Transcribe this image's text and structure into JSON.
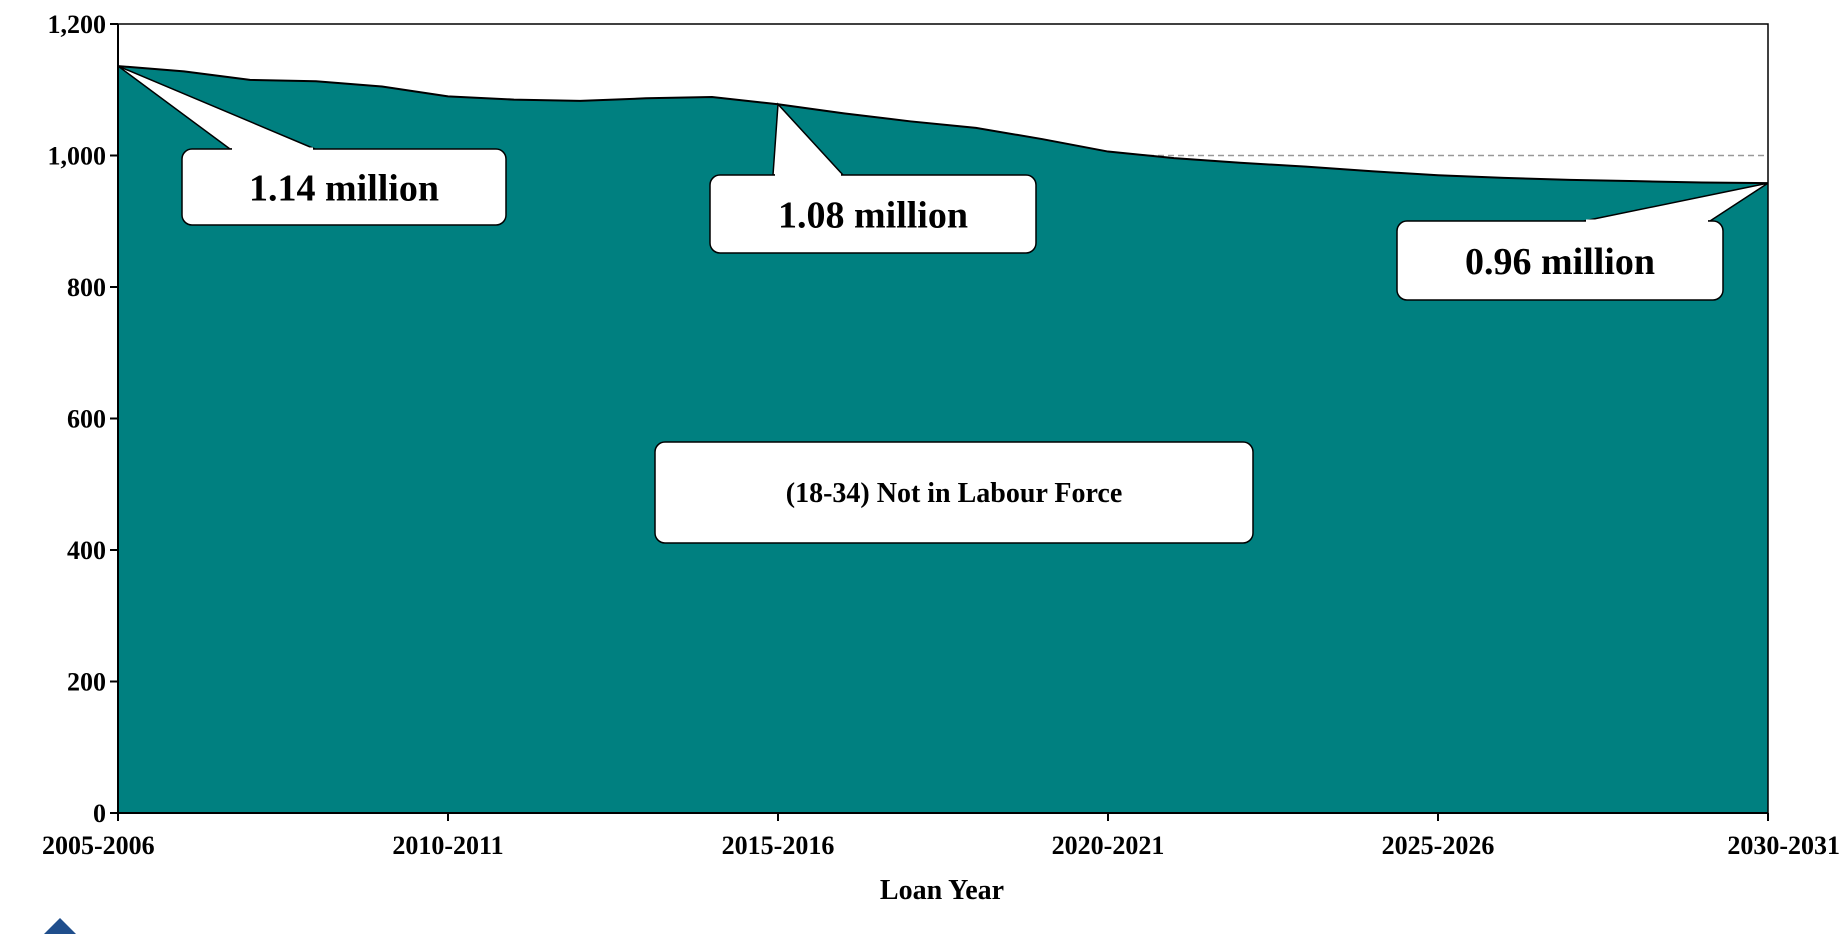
{
  "chart_data": {
    "type": "area",
    "xlabel": "Loan Year",
    "ylabel": "",
    "ylim": [
      0,
      1200
    ],
    "yticks": [
      0,
      200,
      400,
      600,
      800,
      1000,
      1200
    ],
    "ytick_labels": [
      "0",
      "200",
      "400",
      "600",
      "800",
      "1,000",
      "1,200"
    ],
    "xtick_labels": [
      "2005-2006",
      "2010-2011",
      "2015-2016",
      "2020-2021",
      "2025-2026",
      "2030-2031"
    ],
    "x": [
      "2005-2006",
      "2006-2007",
      "2007-2008",
      "2008-2009",
      "2009-2010",
      "2010-2011",
      "2011-2012",
      "2012-2013",
      "2013-2014",
      "2014-2015",
      "2015-2016",
      "2016-2017",
      "2017-2018",
      "2018-2019",
      "2019-2020",
      "2020-2021",
      "2021-2022",
      "2022-2023",
      "2023-2024",
      "2024-2025",
      "2025-2026",
      "2026-2027",
      "2027-2028",
      "2028-2029",
      "2029-2030",
      "2030-2031"
    ],
    "series": [
      {
        "name": "(18-34) Not in Labour Force",
        "color": "#008080",
        "values": [
          1136,
          1128,
          1115,
          1113,
          1105,
          1090,
          1085,
          1083,
          1087,
          1089,
          1078,
          1064,
          1052,
          1042,
          1025,
          1006,
          996,
          989,
          983,
          976,
          970,
          966,
          963,
          961,
          959,
          958
        ]
      }
    ],
    "reference_line": {
      "value": 1000,
      "style": "dashed",
      "color": "#999999"
    },
    "annotations": [
      {
        "text": "1.14 million",
        "points_to": "2005-2006"
      },
      {
        "text": "1.08 million",
        "points_to": "2015-2016"
      },
      {
        "text": "0.96 million",
        "points_to": "2030-2031"
      }
    ],
    "series_label": "(18-34) Not in Labour Force",
    "grid": false
  }
}
